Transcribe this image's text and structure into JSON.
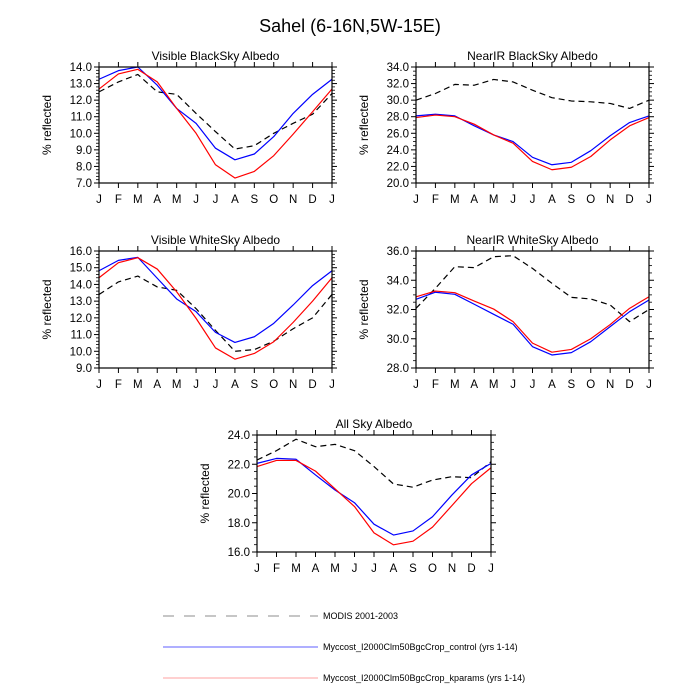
{
  "title": "Sahel (6-16N,5W-15E)",
  "colors": {
    "modis": "#000000",
    "control": "#0000ff",
    "kparams": "#ff0000",
    "axis": "#000000",
    "legend_modis": "#b3b3b3",
    "legend_control": "#7f7fff",
    "legend_kparams": "#ffb3b3"
  },
  "legend": [
    {
      "key": "modis",
      "label": "MODIS 2001-2003",
      "style": "dashed"
    },
    {
      "key": "control",
      "label": "Myccost_I2000Clm50BgcCrop_control (yrs 1-14)",
      "style": "solid"
    },
    {
      "key": "kparams",
      "label": "Myccost_I2000Clm50BgcCrop_kparams (yrs 1-14)",
      "style": "solid"
    }
  ],
  "chart_data": [
    {
      "type": "line",
      "title": "Visible BlackSky Albedo",
      "xlabel": "",
      "ylabel": "% reflected",
      "categories": [
        "J",
        "F",
        "M",
        "A",
        "M",
        "J",
        "J",
        "A",
        "S",
        "O",
        "N",
        "D",
        "J"
      ],
      "ylim": [
        7.0,
        14.0
      ],
      "yticks": [
        "7.0",
        "8.0",
        "9.0",
        "10.0",
        "11.0",
        "12.0",
        "13.0",
        "14.0"
      ],
      "ytick_values": [
        7,
        8,
        9,
        10,
        11,
        12,
        13,
        14
      ],
      "minor_per_major": 5,
      "grid": false,
      "series": [
        {
          "name": "MODIS 2001-2003",
          "key": "modis",
          "values": [
            12.5,
            13.1,
            13.55,
            12.5,
            12.35,
            11.2,
            10.1,
            9.05,
            9.25,
            10.0,
            10.6,
            11.15,
            12.4
          ]
        },
        {
          "name": "Myccost_I2000Clm50BgcCrop_control (yrs 1-14)",
          "key": "control",
          "values": [
            13.26,
            13.78,
            14.0,
            12.9,
            11.5,
            10.6,
            9.1,
            8.4,
            8.75,
            9.8,
            11.2,
            12.35,
            13.26
          ]
        },
        {
          "name": "Myccost_I2000Clm50BgcCrop_kparams (yrs 1-14)",
          "key": "kparams",
          "values": [
            12.67,
            13.58,
            13.86,
            13.1,
            11.5,
            10.0,
            8.1,
            7.3,
            7.7,
            8.65,
            9.95,
            11.3,
            12.67
          ]
        }
      ]
    },
    {
      "type": "line",
      "title": "NearIR BlackSky Albedo",
      "xlabel": "",
      "ylabel": "% reflected",
      "categories": [
        "J",
        "F",
        "M",
        "A",
        "M",
        "J",
        "J",
        "A",
        "S",
        "O",
        "N",
        "D",
        "J"
      ],
      "ylim": [
        20.0,
        34.0
      ],
      "yticks": [
        "20.0",
        "22.0",
        "24.0",
        "26.0",
        "28.0",
        "30.0",
        "32.0",
        "34.0"
      ],
      "ytick_values": [
        20,
        22,
        24,
        26,
        28,
        30,
        32,
        34
      ],
      "minor_per_major": 4,
      "grid": false,
      "series": [
        {
          "name": "MODIS 2001-2003",
          "key": "modis",
          "values": [
            30.0,
            30.8,
            31.9,
            31.8,
            32.5,
            32.2,
            31.2,
            30.3,
            29.9,
            29.8,
            29.6,
            29.0,
            30.0
          ]
        },
        {
          "name": "Myccost_I2000Clm50BgcCrop_control (yrs 1-14)",
          "key": "control",
          "values": [
            28.1,
            28.3,
            28.1,
            26.9,
            25.8,
            25.0,
            23.1,
            22.2,
            22.5,
            23.9,
            25.7,
            27.3,
            28.1
          ]
        },
        {
          "name": "Myccost_I2000Clm50BgcCrop_kparams (yrs 1-14)",
          "key": "kparams",
          "values": [
            27.9,
            28.2,
            28.0,
            27.1,
            25.8,
            24.8,
            22.6,
            21.6,
            21.9,
            23.2,
            25.2,
            26.9,
            27.9
          ]
        }
      ]
    },
    {
      "type": "line",
      "title": "Visible WhiteSky Albedo",
      "xlabel": "",
      "ylabel": "% reflected",
      "categories": [
        "J",
        "F",
        "M",
        "A",
        "M",
        "J",
        "J",
        "A",
        "S",
        "O",
        "N",
        "D",
        "J"
      ],
      "ylim": [
        9.0,
        16.0
      ],
      "yticks": [
        "9.0",
        "10.0",
        "11.0",
        "12.0",
        "13.0",
        "14.0",
        "15.0",
        "16.0"
      ],
      "ytick_values": [
        9,
        10,
        11,
        12,
        13,
        14,
        15,
        16
      ],
      "minor_per_major": 5,
      "grid": false,
      "series": [
        {
          "name": "MODIS 2001-2003",
          "key": "modis",
          "values": [
            13.4,
            14.15,
            14.5,
            13.85,
            13.65,
            12.55,
            11.25,
            10.0,
            10.1,
            10.6,
            11.35,
            12.0,
            13.4
          ]
        },
        {
          "name": "Myccost_I2000Clm50BgcCrop_control (yrs 1-14)",
          "key": "control",
          "values": [
            14.82,
            15.44,
            15.62,
            14.37,
            13.13,
            12.37,
            11.13,
            10.53,
            10.87,
            11.67,
            12.77,
            13.93,
            14.82
          ]
        },
        {
          "name": "Myccost_I2000Clm50BgcCrop_kparams (yrs 1-14)",
          "key": "kparams",
          "values": [
            14.4,
            15.3,
            15.6,
            14.92,
            13.56,
            11.97,
            10.2,
            9.53,
            9.87,
            10.57,
            11.73,
            13.0,
            14.4
          ]
        }
      ]
    },
    {
      "type": "line",
      "title": "NearIR WhiteSky Albedo",
      "xlabel": "",
      "ylabel": "% reflected",
      "categories": [
        "J",
        "F",
        "M",
        "A",
        "M",
        "J",
        "J",
        "A",
        "S",
        "O",
        "N",
        "D",
        "J"
      ],
      "ylim": [
        28.0,
        36.0
      ],
      "yticks": [
        "28.0",
        "30.0",
        "32.0",
        "34.0",
        "36.0"
      ],
      "ytick_values": [
        28,
        30,
        32,
        34,
        36
      ],
      "minor_per_major": 4,
      "grid": false,
      "series": [
        {
          "name": "MODIS 2001-2003",
          "key": "modis",
          "values": [
            32.08,
            33.45,
            34.93,
            34.86,
            35.61,
            35.68,
            34.81,
            33.79,
            32.83,
            32.72,
            32.31,
            31.17,
            32.0
          ]
        },
        {
          "name": "Myccost_I2000Clm50BgcCrop_control (yrs 1-14)",
          "key": "control",
          "values": [
            32.7,
            33.18,
            33.04,
            32.36,
            31.67,
            30.99,
            29.46,
            28.89,
            29.05,
            29.8,
            30.83,
            31.85,
            32.65
          ]
        },
        {
          "name": "Myccost_I2000Clm50BgcCrop_kparams (yrs 1-14)",
          "key": "kparams",
          "values": [
            32.87,
            33.26,
            33.15,
            32.58,
            32.03,
            31.17,
            29.7,
            29.08,
            29.27,
            30.0,
            30.97,
            32.08,
            32.87
          ]
        }
      ]
    },
    {
      "type": "line",
      "title": "All Sky Albedo",
      "xlabel": "",
      "ylabel": "% reflected",
      "categories": [
        "J",
        "F",
        "M",
        "A",
        "M",
        "J",
        "J",
        "A",
        "S",
        "O",
        "N",
        "D",
        "J"
      ],
      "ylim": [
        16.0,
        24.0
      ],
      "yticks": [
        "16.0",
        "18.0",
        "20.0",
        "22.0",
        "24.0"
      ],
      "ytick_values": [
        16,
        18,
        20,
        22,
        24
      ],
      "minor_per_major": 4,
      "grid": false,
      "series": [
        {
          "name": "MODIS 2001-2003",
          "key": "modis",
          "values": [
            22.29,
            22.93,
            23.71,
            23.2,
            23.36,
            22.93,
            21.84,
            20.65,
            20.43,
            20.92,
            21.15,
            21.08,
            22.17
          ]
        },
        {
          "name": "Myccost_I2000Clm50BgcCrop_control (yrs 1-14)",
          "key": "control",
          "values": [
            22.06,
            22.4,
            22.34,
            21.27,
            20.24,
            19.37,
            17.9,
            17.16,
            17.44,
            18.41,
            19.9,
            21.27,
            22.06
          ]
        },
        {
          "name": "Myccost_I2000Clm50BgcCrop_kparams (yrs 1-14)",
          "key": "kparams",
          "values": [
            21.84,
            22.26,
            22.26,
            21.53,
            20.32,
            19.11,
            17.31,
            16.49,
            16.74,
            17.7,
            19.18,
            20.67,
            21.76
          ]
        }
      ]
    }
  ]
}
